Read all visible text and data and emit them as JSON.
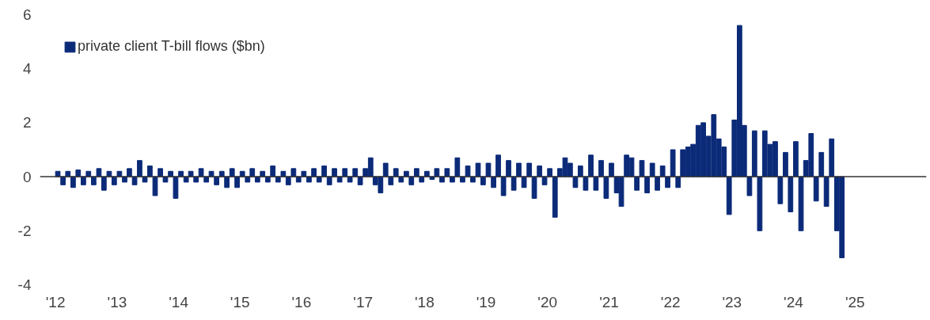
{
  "chart_data": {
    "type": "bar",
    "x": [
      "2012-01-15",
      "2012-02-15",
      "2012-03-15",
      "2012-04-15",
      "2012-05-15",
      "2012-06-15",
      "2012-07-15",
      "2012-08-15",
      "2012-09-15",
      "2012-10-15",
      "2012-11-15",
      "2012-12-15",
      "2013-01-15",
      "2013-02-15",
      "2013-03-15",
      "2013-04-15",
      "2013-05-15",
      "2013-06-15",
      "2013-07-15",
      "2013-08-15",
      "2013-09-15",
      "2013-10-15",
      "2013-11-15",
      "2013-12-15",
      "2014-01-15",
      "2014-02-15",
      "2014-03-15",
      "2014-04-15",
      "2014-05-15",
      "2014-06-15",
      "2014-07-15",
      "2014-08-15",
      "2014-09-15",
      "2014-10-15",
      "2014-11-15",
      "2014-12-15",
      "2015-01-15",
      "2015-02-15",
      "2015-03-15",
      "2015-04-15",
      "2015-05-15",
      "2015-06-15",
      "2015-07-15",
      "2015-08-15",
      "2015-09-15",
      "2015-10-15",
      "2015-11-15",
      "2015-12-15",
      "2016-01-15",
      "2016-02-15",
      "2016-03-15",
      "2016-04-15",
      "2016-05-15",
      "2016-06-15",
      "2016-07-15",
      "2016-08-15",
      "2016-09-15",
      "2016-10-15",
      "2016-11-15",
      "2016-12-15",
      "2017-01-15",
      "2017-02-15",
      "2017-03-15",
      "2017-04-15",
      "2017-05-15",
      "2017-06-15",
      "2017-07-15",
      "2017-08-15",
      "2017-09-15",
      "2017-10-15",
      "2017-11-15",
      "2017-12-15",
      "2018-01-15",
      "2018-02-15",
      "2018-03-15",
      "2018-04-15",
      "2018-05-15",
      "2018-06-15",
      "2018-07-15",
      "2018-08-15",
      "2018-09-15",
      "2018-10-15",
      "2018-11-15",
      "2018-12-15",
      "2019-01-15",
      "2019-02-15",
      "2019-03-15",
      "2019-04-15",
      "2019-05-15",
      "2019-06-15",
      "2019-07-15",
      "2019-08-15",
      "2019-09-15",
      "2019-10-15",
      "2019-11-15",
      "2019-12-15",
      "2020-01-15",
      "2020-02-15",
      "2020-03-15",
      "2020-04-15",
      "2020-05-15",
      "2020-06-15",
      "2020-07-15",
      "2020-08-15",
      "2020-09-15",
      "2020-10-15",
      "2020-11-15",
      "2020-12-15",
      "2021-01-15",
      "2021-02-15",
      "2021-03-15",
      "2021-04-15",
      "2021-05-15",
      "2021-06-15",
      "2021-07-15",
      "2021-08-15",
      "2021-09-15",
      "2021-10-15",
      "2021-11-15",
      "2021-12-15",
      "2022-01-15",
      "2022-02-15",
      "2022-03-15",
      "2022-04-15",
      "2022-05-15",
      "2022-06-15",
      "2022-07-15",
      "2022-08-15",
      "2022-09-15",
      "2022-10-15",
      "2022-11-15",
      "2022-12-15",
      "2023-01-15",
      "2023-02-15",
      "2023-03-15",
      "2023-04-15",
      "2023-05-15",
      "2023-06-15",
      "2023-07-15",
      "2023-08-15",
      "2023-09-15",
      "2023-10-15",
      "2023-11-15",
      "2023-12-15",
      "2024-01-15",
      "2024-02-15",
      "2024-03-15",
      "2024-04-15",
      "2024-05-15",
      "2024-06-15",
      "2024-07-15",
      "2024-08-15",
      "2024-09-15",
      "2024-10-15"
    ],
    "series": [
      {
        "name": "private client T-bill flows ($bn)",
        "color": "#0b2a78",
        "values": [
          0.2,
          -0.3,
          0.2,
          -0.4,
          0.25,
          -0.3,
          0.2,
          -0.3,
          0.3,
          -0.5,
          0.2,
          -0.3,
          0.2,
          -0.2,
          0.3,
          -0.3,
          0.6,
          -0.2,
          0.4,
          -0.7,
          0.3,
          -0.2,
          0.2,
          -0.8,
          0.2,
          -0.2,
          0.2,
          -0.2,
          0.3,
          -0.2,
          0.2,
          -0.3,
          0.2,
          -0.4,
          0.3,
          -0.4,
          0.2,
          -0.2,
          0.3,
          -0.2,
          0.2,
          -0.2,
          0.4,
          -0.2,
          0.2,
          -0.3,
          0.3,
          -0.2,
          0.2,
          -0.2,
          0.3,
          -0.2,
          0.4,
          -0.3,
          0.3,
          -0.2,
          0.3,
          -0.2,
          0.3,
          -0.3,
          0.3,
          0.7,
          -0.3,
          -0.6,
          0.5,
          -0.3,
          0.3,
          -0.2,
          0.2,
          -0.3,
          0.3,
          -0.2,
          0.2,
          -0.1,
          0.3,
          -0.2,
          0.3,
          -0.2,
          0.7,
          -0.2,
          0.4,
          -0.2,
          0.5,
          -0.3,
          0.5,
          -0.4,
          0.8,
          -0.7,
          0.6,
          -0.5,
          0.5,
          -0.4,
          0.5,
          -0.8,
          0.4,
          -0.3,
          0.3,
          -1.5,
          0.3,
          0.7,
          0.5,
          -0.4,
          0.4,
          -0.5,
          0.8,
          -0.5,
          0.6,
          -0.8,
          0.5,
          -0.6,
          -1.1,
          0.8,
          0.7,
          -0.5,
          0.6,
          -0.6,
          0.5,
          -0.5,
          0.4,
          -0.4,
          1.0,
          -0.4,
          1.0,
          1.1,
          1.2,
          1.9,
          2.0,
          1.5,
          2.3,
          1.4,
          1.1,
          -1.4,
          2.1,
          5.6,
          1.9,
          -0.7,
          1.7,
          -2.0,
          1.7,
          1.2,
          1.3,
          -1.0,
          0.9,
          -1.3,
          1.3,
          -2.0,
          0.6,
          1.6,
          -0.9,
          0.9,
          -1.1,
          1.4,
          -2.0,
          -3.0
        ]
      }
    ],
    "xlim": [
      "2011-10-01",
      "2026-03-01"
    ],
    "xticks": [
      {
        "value": "2012-01-01",
        "label": "'12"
      },
      {
        "value": "2013-01-01",
        "label": "'13"
      },
      {
        "value": "2014-01-01",
        "label": "'14"
      },
      {
        "value": "2015-01-01",
        "label": "'15"
      },
      {
        "value": "2016-01-01",
        "label": "'16"
      },
      {
        "value": "2017-01-01",
        "label": "'17"
      },
      {
        "value": "2018-01-01",
        "label": "'18"
      },
      {
        "value": "2019-01-01",
        "label": "'19"
      },
      {
        "value": "2020-01-01",
        "label": "'20"
      },
      {
        "value": "2021-01-01",
        "label": "'21"
      },
      {
        "value": "2022-01-01",
        "label": "'22"
      },
      {
        "value": "2023-01-01",
        "label": "'23"
      },
      {
        "value": "2024-01-01",
        "label": "'24"
      },
      {
        "value": "2025-01-01",
        "label": "'25"
      }
    ],
    "ylim": [
      -4,
      6
    ],
    "yticks": [
      -4,
      -2,
      0,
      2,
      4,
      6
    ],
    "ref_lines": [
      {
        "axis": "y",
        "value": 0,
        "color": "#333333"
      }
    ],
    "legend": "top left",
    "grid": false
  }
}
